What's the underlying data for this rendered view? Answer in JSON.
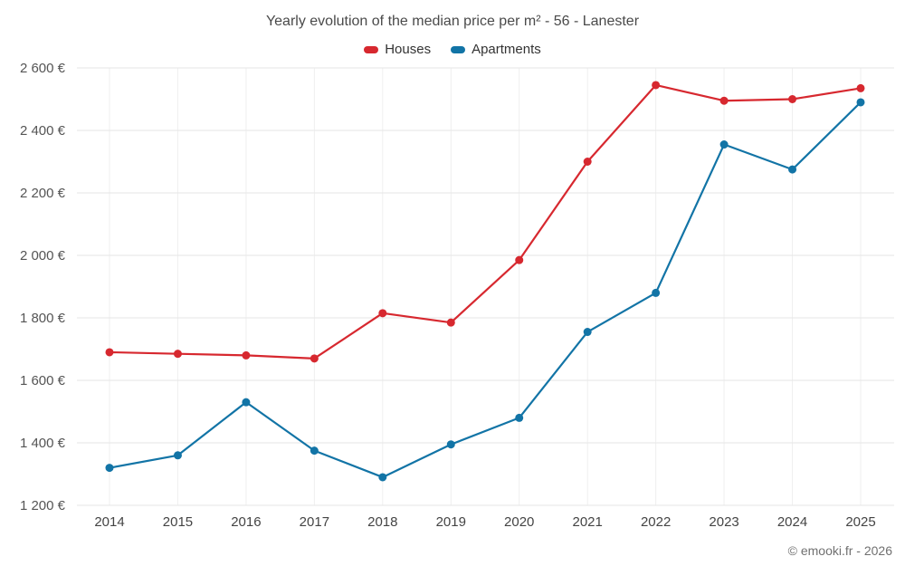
{
  "title": "Yearly evolution of the median price per m² - 56 - Lanester",
  "footer": "© emooki.fr - 2026",
  "colors": {
    "houses": "#d7282f",
    "apartments": "#1274a6",
    "grid_h": "#e6e6e6",
    "grid_v": "#efefef"
  },
  "legend": [
    {
      "label": "Houses",
      "color": "#d7282f"
    },
    {
      "label": "Apartments",
      "color": "#1274a6"
    }
  ],
  "chart_data": {
    "type": "line",
    "title": "Yearly evolution of the median price per m² - 56 - Lanester",
    "x": [
      2014,
      2015,
      2016,
      2017,
      2018,
      2019,
      2020,
      2021,
      2022,
      2023,
      2024,
      2025
    ],
    "series": [
      {
        "name": "Houses",
        "color": "#d7282f",
        "values": [
          1690,
          1685,
          1680,
          1670,
          1815,
          1785,
          1985,
          2300,
          2545,
          2495,
          2500,
          2535
        ]
      },
      {
        "name": "Apartments",
        "color": "#1274a6",
        "values": [
          1320,
          1360,
          1530,
          1375,
          1290,
          1395,
          1480,
          1755,
          1880,
          2355,
          2275,
          2490
        ]
      }
    ],
    "xlabel": "",
    "ylabel": "",
    "ylim": [
      1200,
      2600
    ],
    "ytick_step": 200,
    "ytick_suffix": " €",
    "grid": true,
    "legend_position": "top",
    "marker": "circle"
  }
}
